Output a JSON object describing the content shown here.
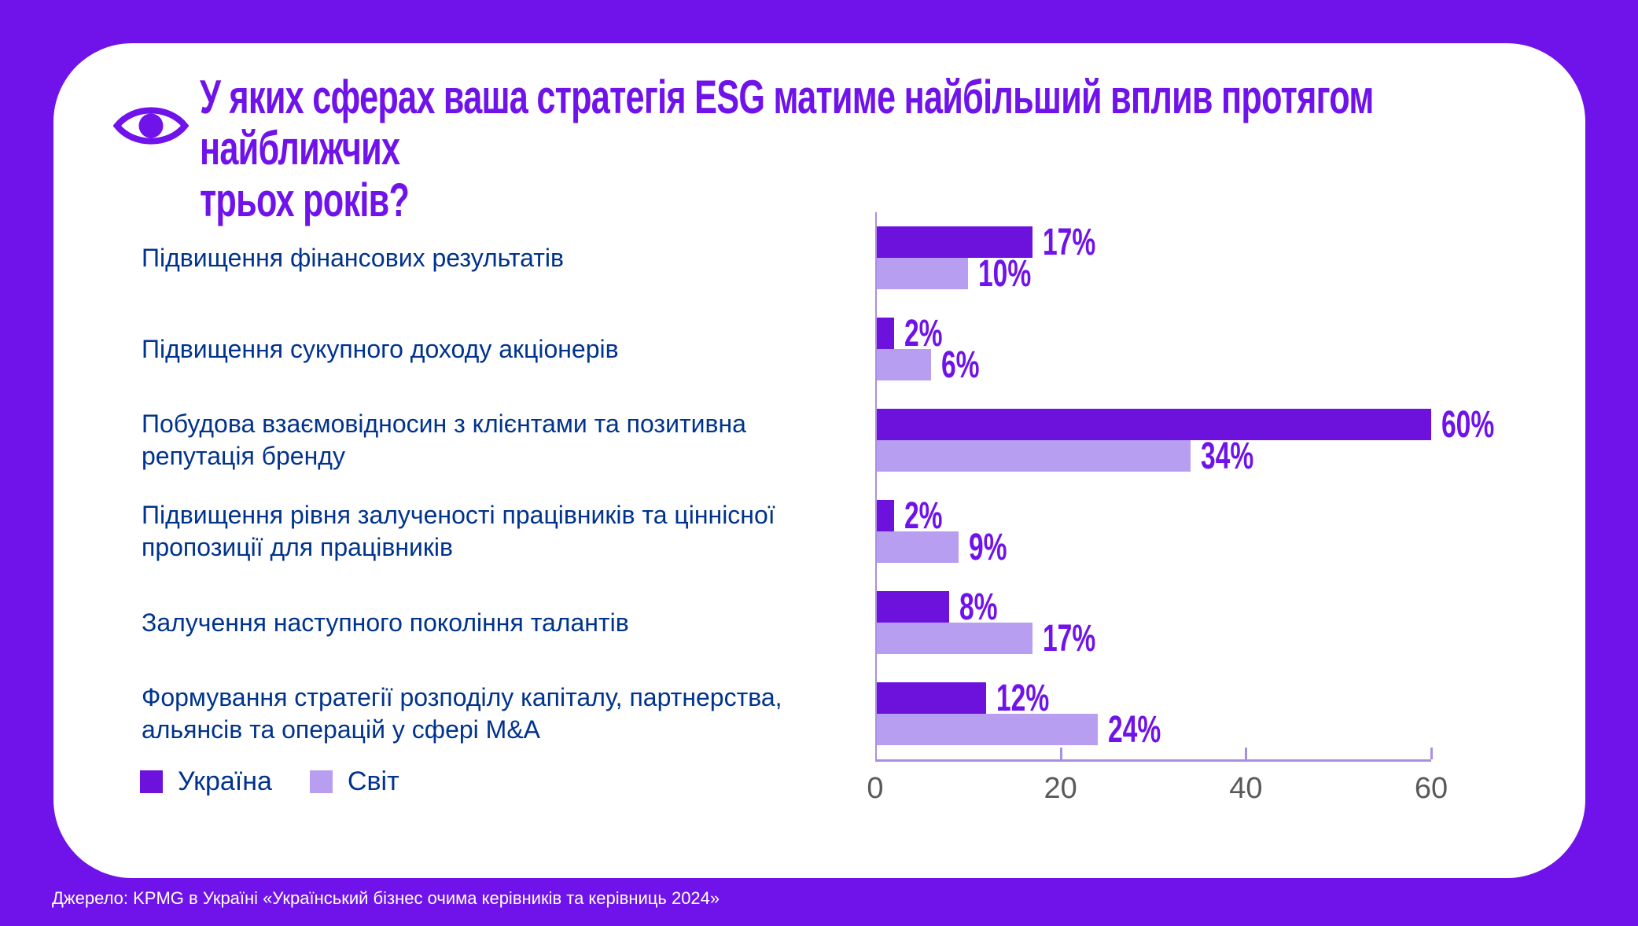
{
  "header": {
    "title": "У яких сферах ваша стратегія ESG матиме найбільший вплив протягом найближчих\nтрьох років?"
  },
  "chart_data": {
    "type": "bar",
    "orientation": "horizontal",
    "title": "У яких сферах ваша стратегія ESG матиме найбільший вплив протягом найближчих трьох років?",
    "categories": [
      "Підвищення фінансових результатів",
      "Підвищення сукупного доходу акціонерів",
      "Побудова взаємовідносин з клієнтами та позитивна\nрепутація бренду",
      "Підвищення рівня залученості працівників та ціннісної\nпропозиції для працівників",
      "Залучення наступного покоління талантів",
      "Формування стратегії розподілу капіталу, партнерства,\nальянсів та операцій у сфері M&A"
    ],
    "series": [
      {
        "name": "Україна",
        "color": "#6d11dd",
        "values": [
          17,
          2,
          60,
          2,
          8,
          12
        ]
      },
      {
        "name": "Світ",
        "color": "#b79ef0",
        "values": [
          10,
          6,
          34,
          9,
          17,
          24
        ]
      }
    ],
    "value_suffix": "%",
    "xlim": [
      0,
      60
    ],
    "x_ticks": [
      0,
      20,
      40,
      60
    ],
    "grid": false,
    "legend_position": "bottom-left"
  },
  "footer": {
    "source": "Джерело: KPMG в Україні «Український бізнес очима керівників та керівниць 2024»"
  },
  "theme": {
    "frame_purple": "#7013ea",
    "ukraine_bar": "#6d11dd",
    "world_bar": "#b79ef0",
    "label_blue": "#00338d",
    "axis_lavender": "#a98fe3",
    "tick_gray": "#58595b",
    "card_white": "#ffffff"
  }
}
